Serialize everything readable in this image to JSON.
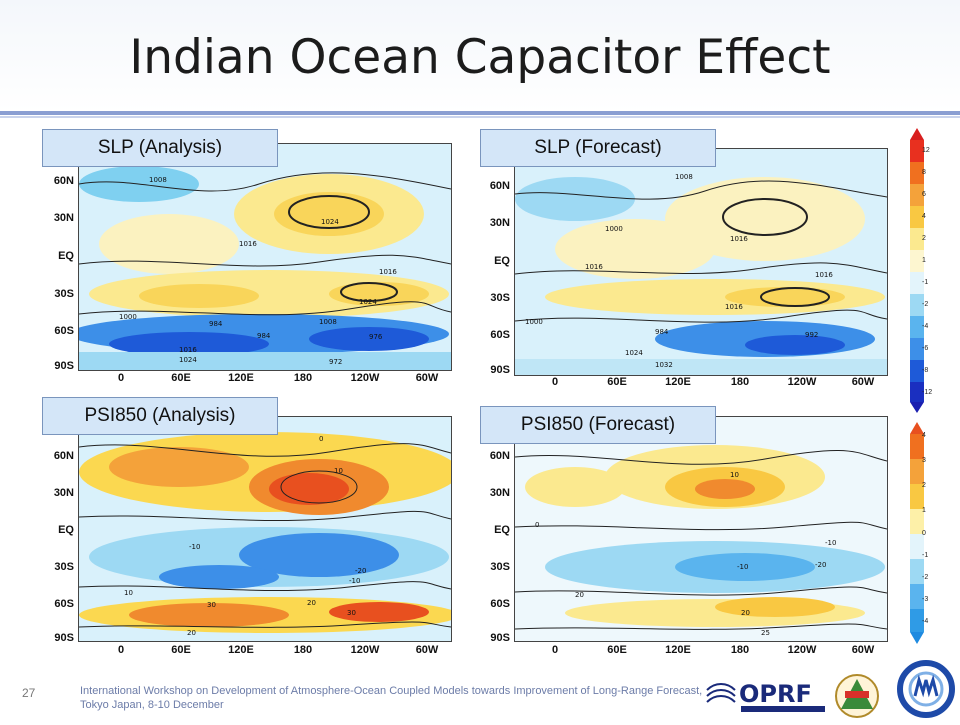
{
  "slide": {
    "title": "Indian Ocean Capacitor Effect",
    "page_number": "27",
    "footer": "International Workshop on Development of Atmosphere-Ocean Coupled Models towards Improvement of Long-Range Forecast, Tokyo Japan, 8-10 December"
  },
  "panels": [
    {
      "label": "SLP (Analysis)",
      "contours": [
        "1008",
        "1016",
        "1024",
        "1016",
        "1024",
        "1000",
        "984",
        "984",
        "1016",
        "1024",
        "1008",
        "976",
        "972"
      ]
    },
    {
      "label": "SLP (Forecast)",
      "contours": [
        "1008",
        "1016",
        "1000",
        "1016",
        "1016",
        "1000",
        "1016",
        "984",
        "992",
        "1024",
        "1032"
      ]
    },
    {
      "label": "PSI850 (Analysis)",
      "contours": [
        "0",
        "10",
        "-10",
        "-20",
        "-10",
        "10",
        "30",
        "20",
        "20",
        "30"
      ]
    },
    {
      "label": "PSI850 (Forecast)",
      "contours": [
        "0",
        "10",
        "-10",
        "-10",
        "20",
        "20",
        "25",
        "-20"
      ]
    }
  ],
  "axes": {
    "lat_labels": [
      "60N",
      "30N",
      "EQ",
      "30S",
      "60S",
      "90S"
    ],
    "lon_labels": [
      "0",
      "60E",
      "120E",
      "180",
      "120W",
      "60W"
    ]
  },
  "colorbars": [
    {
      "ticks": [
        "12",
        "8",
        "6",
        "4",
        "2",
        "1",
        "-1",
        "-2",
        "-4",
        "-6",
        "-8",
        "-12"
      ]
    },
    {
      "ticks": [
        "4",
        "3",
        "2",
        "1",
        "0",
        "-1",
        "-2",
        "-3",
        "-4"
      ]
    }
  ],
  "logos": {
    "oprf": "OPRF"
  },
  "colors": {
    "title_rule": "#8a9ed2",
    "label_bg": "#d4e6f8",
    "warm": "#f9d55a",
    "hot": "#e8501f",
    "cool": "#7fd0f0",
    "cold": "#1e5ad8"
  }
}
